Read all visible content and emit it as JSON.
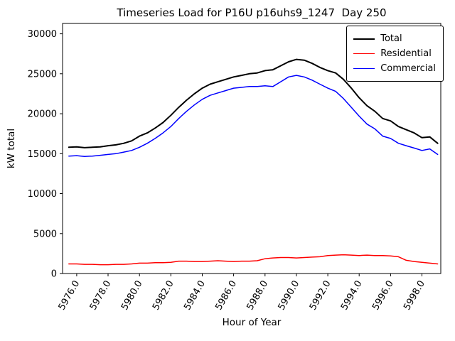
{
  "chart_data": {
    "type": "line",
    "title": "Timeseries Load for P16U p16uhs9_1247  Day 250",
    "xlabel": "Hour of Year",
    "ylabel": "kW total",
    "xlim": [
      5975.1,
      5999.2
    ],
    "ylim": [
      0,
      31300
    ],
    "grid": false,
    "legend_position": "upper right",
    "xticks": [
      5976,
      5978,
      5980,
      5982,
      5984,
      5986,
      5988,
      5990,
      5992,
      5994,
      5996,
      5998
    ],
    "xtick_labels": [
      "5976.0",
      "5978.0",
      "5980.0",
      "5982.0",
      "5984.0",
      "5986.0",
      "5988.0",
      "5990.0",
      "5992.0",
      "5994.0",
      "5996.0",
      "5998.0"
    ],
    "yticks": [
      0,
      5000,
      10000,
      15000,
      20000,
      25000,
      30000
    ],
    "ytick_labels": [
      "0",
      "5000",
      "10000",
      "15000",
      "20000",
      "25000",
      "30000"
    ],
    "x": [
      5975.5,
      5976.0,
      5976.5,
      5977.0,
      5977.5,
      5978.0,
      5978.5,
      5979.0,
      5979.5,
      5980.0,
      5980.5,
      5981.0,
      5981.5,
      5982.0,
      5982.5,
      5983.0,
      5983.5,
      5984.0,
      5984.5,
      5985.0,
      5985.5,
      5986.0,
      5986.5,
      5987.0,
      5987.5,
      5988.0,
      5988.5,
      5989.0,
      5989.5,
      5990.0,
      5990.5,
      5991.0,
      5991.5,
      5992.0,
      5992.5,
      5993.0,
      5993.5,
      5994.0,
      5994.5,
      5995.0,
      5995.5,
      5996.0,
      5996.5,
      5997.0,
      5997.5,
      5998.0,
      5998.5,
      5999.0
    ],
    "series": [
      {
        "name": "Total",
        "color": "#000000",
        "width": 2,
        "values": [
          15800,
          15850,
          15750,
          15800,
          15850,
          16000,
          16100,
          16300,
          16600,
          17200,
          17600,
          18200,
          18900,
          19800,
          20800,
          21700,
          22500,
          23200,
          23700,
          24000,
          24300,
          24600,
          24800,
          25000,
          25100,
          25400,
          25500,
          26000,
          26500,
          26800,
          26700,
          26300,
          25800,
          25400,
          25100,
          24300,
          23200,
          22000,
          21000,
          20300,
          19400,
          19100,
          18400,
          18000,
          17600,
          17000,
          17100,
          16300
        ]
      },
      {
        "name": "Residential",
        "color": "#ff0000",
        "width": 1.5,
        "values": [
          1200,
          1200,
          1150,
          1150,
          1100,
          1100,
          1150,
          1150,
          1200,
          1300,
          1300,
          1350,
          1350,
          1400,
          1550,
          1550,
          1500,
          1500,
          1550,
          1600,
          1550,
          1500,
          1550,
          1550,
          1600,
          1850,
          1950,
          2000,
          2000,
          1950,
          2000,
          2050,
          2100,
          2250,
          2300,
          2350,
          2300,
          2250,
          2300,
          2250,
          2250,
          2200,
          2100,
          1650,
          1500,
          1400,
          1300,
          1200
        ]
      },
      {
        "name": "Commercial",
        "color": "#0000ff",
        "width": 1.5,
        "values": [
          14700,
          14750,
          14650,
          14700,
          14800,
          14900,
          15000,
          15200,
          15400,
          15800,
          16300,
          16900,
          17600,
          18400,
          19400,
          20300,
          21100,
          21800,
          22300,
          22600,
          22900,
          23200,
          23300,
          23400,
          23400,
          23500,
          23400,
          24000,
          24600,
          24800,
          24600,
          24200,
          23700,
          23200,
          22800,
          21900,
          20800,
          19700,
          18700,
          18100,
          17200,
          16900,
          16300,
          16000,
          15700,
          15400,
          15600,
          14900
        ]
      }
    ]
  }
}
